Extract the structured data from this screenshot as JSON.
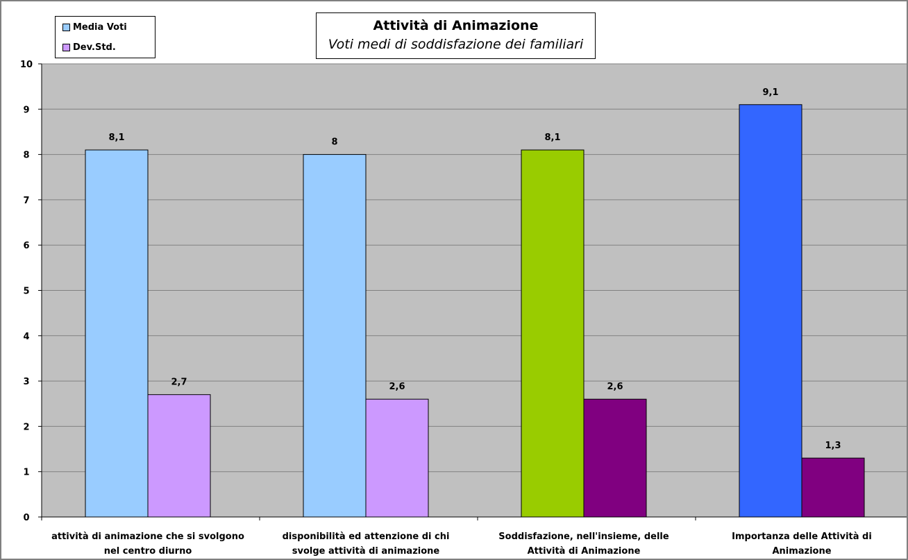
{
  "chart_data": {
    "type": "bar",
    "title": "Attività di Animazione",
    "subtitle": "Voti medi di soddisfazione dei familiari",
    "categories": [
      [
        "attività di animazione che si svolgono",
        "nel centro diurno"
      ],
      [
        "disponibilità ed attenzione di chi",
        "svolge attività di animazione"
      ],
      [
        "Soddisfazione, nell'insieme, delle",
        "Attività di Animazione"
      ],
      [
        "Importanza delle Attività di",
        "Animazione"
      ]
    ],
    "series": [
      {
        "name": "Media Voti",
        "values": [
          8.1,
          8,
          8.1,
          9.1
        ],
        "labels": [
          "8,1",
          "8",
          "8,1",
          "9,1"
        ]
      },
      {
        "name": "Dev.Std.",
        "values": [
          2.7,
          2.6,
          2.6,
          1.3
        ],
        "labels": [
          "2,7",
          "2,6",
          "2,6",
          "1,3"
        ]
      }
    ],
    "ylim": [
      0,
      10
    ],
    "yticks": [
      "0",
      "1",
      "2",
      "3",
      "4",
      "5",
      "6",
      "7",
      "8",
      "9",
      "10"
    ],
    "grid": true,
    "legend_position": "top-left",
    "colors": {
      "plot_background": "#c0c0c0",
      "media_voti": [
        "#99ccff",
        "#99ccff",
        "#99cc00",
        "#3366ff"
      ],
      "dev_std": [
        "#cc99ff",
        "#cc99ff",
        "#800080",
        "#800080"
      ],
      "legend_media_voti": "#99ccff",
      "legend_dev_std": "#cc99ff"
    }
  }
}
